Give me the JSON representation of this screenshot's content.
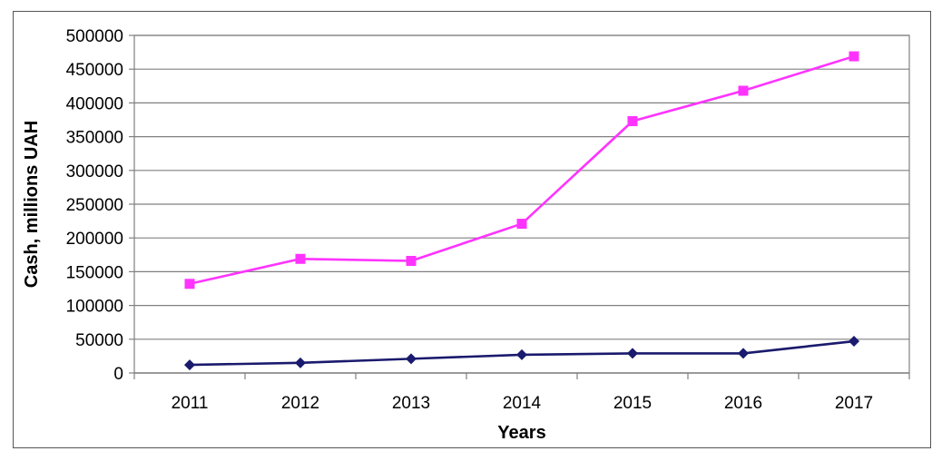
{
  "chart_data": {
    "type": "line",
    "xlabel": "Years",
    "ylabel": "Cash, millions UAH",
    "categories": [
      "2011",
      "2012",
      "2013",
      "2014",
      "2015",
      "2016",
      "2017"
    ],
    "ylim": [
      0,
      500000
    ],
    "yticks": [
      0,
      50000,
      100000,
      150000,
      200000,
      250000,
      300000,
      350000,
      400000,
      450000,
      500000
    ],
    "grid": true,
    "legend": "none",
    "series": [
      {
        "color": "#ff33ff",
        "marker": "square",
        "values": [
          132000,
          169000,
          166000,
          221000,
          373000,
          418000,
          469000
        ]
      },
      {
        "color": "#1a1a6e",
        "marker": "diamond",
        "values": [
          12000,
          15000,
          21000,
          27000,
          29000,
          29000,
          47000
        ]
      }
    ]
  }
}
